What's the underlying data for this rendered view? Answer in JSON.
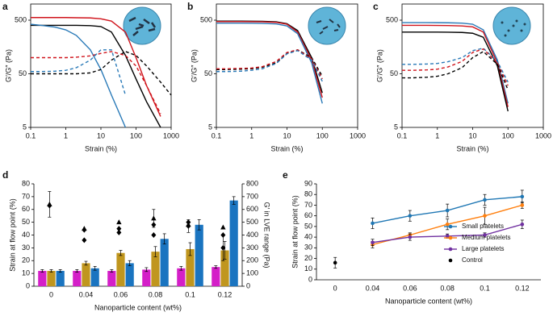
{
  "chart_data": [
    {
      "panel": "a",
      "type": "line",
      "xscale": "log",
      "yscale": "log",
      "frame": true,
      "xlabel": "Strain (%)",
      "ylabel": "G′/G″ (Pa)",
      "x": [
        0.1,
        0.2,
        0.5,
        1,
        2,
        5,
        10,
        20,
        50,
        100,
        200,
        500,
        1000
      ],
      "xlim": [
        0.1,
        1000
      ],
      "xticks": [
        0.1,
        1,
        10,
        100,
        1000
      ],
      "ylim": [
        5,
        1000
      ],
      "yticks": [
        5,
        50,
        500
      ],
      "series": [
        {
          "color": "#000000",
          "dash": false,
          "values": [
            400,
            400,
            400,
            400,
            400,
            395,
            380,
            300,
            110,
            40,
            15,
            5,
            null
          ]
        },
        {
          "color": "#d0141c",
          "dash": false,
          "values": [
            560,
            560,
            560,
            560,
            555,
            550,
            530,
            480,
            300,
            100,
            30,
            8,
            null
          ]
        },
        {
          "color": "#2a7ab8",
          "dash": false,
          "values": [
            420,
            400,
            370,
            330,
            260,
            140,
            60,
            20,
            5,
            null,
            null,
            null,
            null
          ]
        },
        {
          "color": "#000000",
          "dash": true,
          "values": [
            50,
            50,
            50,
            50,
            50,
            52,
            60,
            90,
            130,
            110,
            70,
            35,
            20
          ]
        },
        {
          "color": "#d0141c",
          "dash": true,
          "values": [
            100,
            100,
            100,
            100,
            102,
            108,
            120,
            130,
            110,
            70,
            30,
            9,
            null
          ]
        },
        {
          "color": "#2a7ab8",
          "dash": true,
          "values": [
            55,
            55,
            56,
            58,
            65,
            90,
            140,
            140,
            20,
            null,
            null,
            null,
            null
          ]
        }
      ]
    },
    {
      "panel": "b",
      "type": "line",
      "xscale": "log",
      "yscale": "log",
      "frame": true,
      "xlabel": "Strain (%)",
      "ylabel": "G′/G″ (Pa)",
      "x": [
        0.1,
        0.2,
        0.5,
        1,
        2,
        5,
        10,
        20,
        50,
        100,
        200,
        500,
        1000
      ],
      "xlim": [
        0.1,
        1000
      ],
      "xticks": [
        0.1,
        1,
        10,
        100,
        1000
      ],
      "ylim": [
        5,
        1000
      ],
      "yticks": [
        5,
        50,
        500
      ],
      "series": [
        {
          "color": "#000000",
          "dash": false,
          "values": [
            480,
            480,
            480,
            478,
            475,
            465,
            430,
            320,
            100,
            22,
            null,
            null,
            null
          ]
        },
        {
          "color": "#d0141c",
          "dash": false,
          "values": [
            470,
            470,
            470,
            468,
            465,
            455,
            420,
            300,
            90,
            18,
            null,
            null,
            null
          ]
        },
        {
          "color": "#2a7ab8",
          "dash": false,
          "values": [
            440,
            440,
            440,
            438,
            435,
            425,
            390,
            280,
            80,
            14,
            null,
            null,
            null
          ]
        },
        {
          "color": "#000000",
          "dash": true,
          "values": [
            60,
            60,
            61,
            62,
            66,
            80,
            120,
            140,
            100,
            45,
            null,
            null,
            null
          ]
        },
        {
          "color": "#d0141c",
          "dash": true,
          "values": [
            62,
            62,
            63,
            64,
            68,
            85,
            125,
            140,
            95,
            40,
            null,
            null,
            null
          ]
        },
        {
          "color": "#2a7ab8",
          "dash": true,
          "values": [
            55,
            55,
            56,
            58,
            62,
            78,
            118,
            135,
            90,
            36,
            null,
            null,
            null
          ]
        }
      ]
    },
    {
      "panel": "c",
      "type": "line",
      "xscale": "log",
      "yscale": "log",
      "frame": true,
      "xlabel": "Strain (%)",
      "ylabel": "G′/G″ (Pa)",
      "x": [
        0.1,
        0.2,
        0.5,
        1,
        2,
        5,
        10,
        20,
        50,
        100,
        200,
        500,
        1000
      ],
      "xlim": [
        0.1,
        1000
      ],
      "xticks": [
        0.1,
        1,
        10,
        100,
        1000
      ],
      "ylim": [
        5,
        1000
      ],
      "yticks": [
        5,
        50,
        500
      ],
      "series": [
        {
          "color": "#2a7ab8",
          "dash": false,
          "values": [
            450,
            450,
            450,
            449,
            447,
            440,
            420,
            330,
            90,
            14,
            null,
            null,
            null
          ]
        },
        {
          "color": "#d0141c",
          "dash": false,
          "values": [
            400,
            400,
            400,
            399,
            397,
            390,
            375,
            300,
            80,
            12,
            null,
            null,
            null
          ]
        },
        {
          "color": "#000000",
          "dash": false,
          "values": [
            300,
            300,
            300,
            300,
            298,
            295,
            285,
            240,
            70,
            10,
            null,
            null,
            null
          ]
        },
        {
          "color": "#2a7ab8",
          "dash": true,
          "values": [
            75,
            75,
            76,
            78,
            84,
            100,
            135,
            150,
            85,
            35,
            null,
            null,
            null
          ]
        },
        {
          "color": "#d0141c",
          "dash": true,
          "values": [
            58,
            58,
            59,
            61,
            67,
            85,
            125,
            145,
            80,
            30,
            null,
            null,
            null
          ]
        },
        {
          "color": "#000000",
          "dash": true,
          "values": [
            42,
            42,
            43,
            45,
            50,
            65,
            100,
            130,
            75,
            25,
            null,
            null,
            null
          ]
        }
      ]
    },
    {
      "panel": "d",
      "type": "bar",
      "xlabel": "Nanoparticle content (wt%)",
      "ylabel": "Strain at flow point (%)",
      "y2label": "G′ in LVE range (Pa)",
      "categories": [
        "0",
        "0.04",
        "0.06",
        "0.08",
        "0.1",
        "0.12"
      ],
      "ylim": [
        0,
        80
      ],
      "yticks": [
        0,
        10,
        20,
        30,
        40,
        50,
        60,
        70,
        80
      ],
      "y2lim": [
        0,
        800
      ],
      "y2ticks": [
        0,
        100,
        200,
        300,
        400,
        500,
        600,
        700,
        800
      ],
      "series": [
        {
          "color": "#d41fc8",
          "values": [
            12,
            12,
            12,
            13,
            14,
            15
          ],
          "errors": [
            1,
            1,
            1,
            1.5,
            1.5,
            1
          ]
        },
        {
          "color": "#c0961e",
          "values": [
            12,
            18,
            26,
            27,
            29,
            28
          ],
          "errors": [
            1,
            1.5,
            2,
            4,
            5,
            7
          ]
        },
        {
          "color": "#1a74c0",
          "values": [
            12,
            14,
            18,
            37,
            48,
            67
          ],
          "errors": [
            1,
            1.5,
            2,
            4,
            4,
            3
          ]
        },
        {
          "axis": "y2",
          "marker": "triangle",
          "color": "#000000",
          "values": [
            640,
            450,
            500,
            530,
            480,
            460
          ],
          "errors": [
            100,
            null,
            null,
            70,
            null,
            null
          ]
        },
        {
          "axis": "y2",
          "marker": "diamond",
          "color": "#000000",
          "values": [
            630,
            440,
            450,
            480,
            470,
            400
          ],
          "errors": [
            null,
            null,
            null,
            null,
            50,
            null
          ]
        },
        {
          "axis": "y2",
          "marker": "diamond",
          "color": "#000000",
          "values": [
            null,
            360,
            420,
            400,
            500,
            300
          ],
          "errors": [
            null,
            null,
            null,
            null,
            null,
            100
          ]
        }
      ]
    },
    {
      "panel": "e",
      "type": "line",
      "xlabel": "Nanoparticle content (wt%)",
      "ylabel": "Strain at flow point (%)",
      "categories": [
        "0",
        "0.04",
        "0.06",
        "0.08",
        "0.1",
        "0.12"
      ],
      "ylim": [
        0,
        90
      ],
      "yticks": [
        0,
        10,
        20,
        30,
        40,
        50,
        60,
        70,
        80,
        90
      ],
      "legend": "lower right",
      "series": [
        {
          "name": "Small platelets",
          "color": "#1f77b4",
          "marker": "dot",
          "values": [
            null,
            53,
            60,
            65,
            75,
            78
          ],
          "errors": [
            null,
            5,
            5,
            6,
            5,
            6
          ]
        },
        {
          "name": "Medium platelets",
          "color": "#ff7f0e",
          "marker": "dot",
          "values": [
            null,
            33,
            42,
            52,
            60,
            70
          ],
          "errors": [
            null,
            3,
            2,
            5,
            8,
            3
          ]
        },
        {
          "name": "Large platelets",
          "color": "#7030a0",
          "marker": "dot",
          "values": [
            null,
            35,
            40,
            41,
            42,
            52
          ],
          "errors": [
            null,
            3,
            3,
            2,
            2,
            4
          ]
        },
        {
          "name": "Control",
          "color": "#000000",
          "marker": "dot",
          "values": [
            16,
            null,
            null,
            null,
            null,
            null
          ],
          "errors": [
            5,
            null,
            null,
            null,
            null,
            null
          ]
        }
      ]
    }
  ]
}
